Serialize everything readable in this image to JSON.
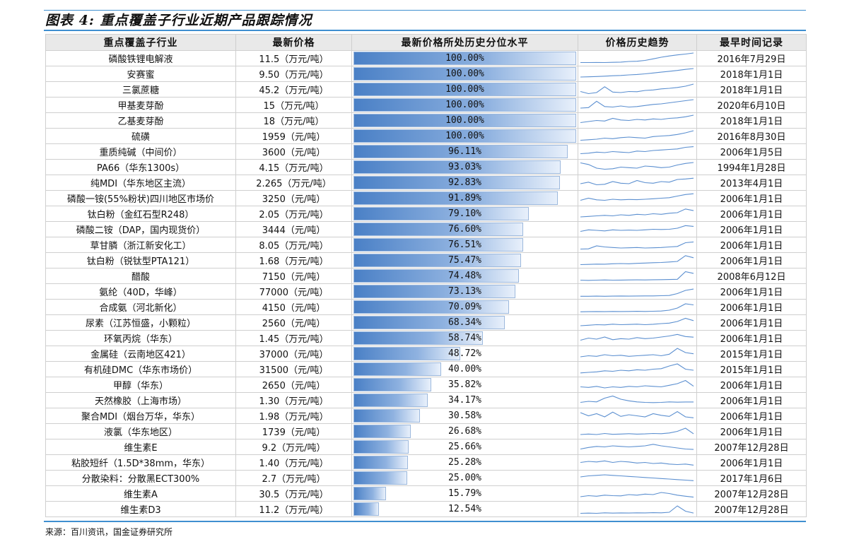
{
  "title": "图表 4: 重点覆盖子行业近期产品跟踪情况",
  "headers": [
    "重点覆盖子行业",
    "最新价格",
    "最新价格所处历史分位水平",
    "价格历史趋势",
    "最早时间记录"
  ],
  "colors": {
    "accent_line": "#3f8fd0",
    "bar": "#4a80c6",
    "sparkline": "#5b8fd0"
  },
  "rows": [
    {
      "name": "磷酸铁锂电解液",
      "price": "11.5（万元/吨）",
      "pct_label": "100.00%",
      "pct": 100.0,
      "since": "2016年7月29日",
      "trend": [
        0.1,
        0.1,
        0.11,
        0.1,
        0.12,
        0.14,
        0.2,
        0.22,
        0.3,
        0.45,
        0.6,
        0.72,
        0.82,
        0.9,
        1.0
      ]
    },
    {
      "name": "安赛蜜",
      "price": "9.50（万元/吨）",
      "pct_label": "100.00%",
      "pct": 100.0,
      "since": "2018年1月1日",
      "trend": [
        0.2,
        0.22,
        0.25,
        0.28,
        0.32,
        0.35,
        0.4,
        0.44,
        0.5,
        0.58,
        0.66,
        0.74,
        0.82,
        0.92,
        1.0
      ]
    },
    {
      "name": "三氯蔗糖",
      "price": "45.2（万元/吨）",
      "pct_label": "100.00%",
      "pct": 100.0,
      "since": "2018年1月1日",
      "trend": [
        0.3,
        0.1,
        0.2,
        0.75,
        0.25,
        0.2,
        0.3,
        0.28,
        0.4,
        0.45,
        0.55,
        0.6,
        0.68,
        0.8,
        1.0
      ]
    },
    {
      "name": "甲基麦芽酚",
      "price": "15（万元/吨）",
      "pct_label": "100.00%",
      "pct": 100.0,
      "since": "2020年6月10日",
      "trend": [
        0.2,
        0.25,
        0.85,
        0.35,
        0.3,
        0.4,
        0.3,
        0.35,
        0.45,
        0.55,
        0.6,
        0.7,
        0.8,
        0.9,
        1.0
      ]
    },
    {
      "name": "乙基麦芽酚",
      "price": "18（万元/吨）",
      "pct_label": "100.00%",
      "pct": 100.0,
      "since": "2018年1月1日",
      "trend": [
        0.3,
        0.4,
        0.5,
        0.45,
        0.7,
        0.55,
        0.5,
        0.6,
        0.55,
        0.65,
        0.6,
        0.7,
        0.75,
        0.85,
        1.0
      ]
    },
    {
      "name": "硫磺",
      "price": "1959（元/吨）",
      "pct_label": "100.00%",
      "pct": 100.0,
      "since": "2016年8月30日",
      "trend": [
        0.1,
        0.15,
        0.2,
        0.3,
        0.25,
        0.35,
        0.4,
        0.35,
        0.3,
        0.45,
        0.5,
        0.55,
        0.65,
        0.8,
        1.0
      ]
    },
    {
      "name": "重质纯碱（中间价）",
      "price": "3600（元/吨）",
      "pct_label": "96.11%",
      "pct": 96.11,
      "since": "2006年1月5日",
      "trend": [
        0.3,
        0.35,
        0.45,
        0.4,
        0.5,
        0.45,
        0.4,
        0.55,
        0.5,
        0.6,
        0.65,
        0.7,
        0.75,
        0.9,
        0.96
      ]
    },
    {
      "name": "PA66（华东1300s）",
      "price": "4.15（万元/吨）",
      "pct_label": "93.03%",
      "pct": 93.03,
      "since": "1994年1月28日",
      "trend": [
        0.9,
        0.75,
        0.4,
        0.3,
        0.35,
        0.5,
        0.45,
        0.4,
        0.6,
        0.55,
        0.45,
        0.5,
        0.7,
        0.85,
        0.93
      ]
    },
    {
      "name": "纯MDI（华东地区主流）",
      "price": "2.265（万元/吨）",
      "pct_label": "92.83%",
      "pct": 92.83,
      "since": "2013年4月1日",
      "trend": [
        0.4,
        0.55,
        0.3,
        0.35,
        0.6,
        0.45,
        0.4,
        0.7,
        0.5,
        0.45,
        0.6,
        0.55,
        0.8,
        0.85,
        0.92
      ]
    },
    {
      "name": "磷酸一铵(55%粉状)四川地区市场价",
      "price": "3250（元/吨）",
      "pct_label": "91.89%",
      "pct": 91.89,
      "since": "2006年1月1日",
      "trend": [
        0.3,
        0.5,
        0.35,
        0.3,
        0.4,
        0.35,
        0.38,
        0.36,
        0.4,
        0.45,
        0.5,
        0.55,
        0.7,
        0.85,
        0.92
      ]
    },
    {
      "name": "钛白粉（金红石型R248）",
      "price": "2.05（万元/吨）",
      "pct_label": "79.10%",
      "pct": 79.1,
      "since": "2006年1月1日",
      "trend": [
        0.2,
        0.25,
        0.3,
        0.35,
        0.3,
        0.4,
        0.35,
        0.45,
        0.4,
        0.5,
        0.45,
        0.55,
        0.6,
        0.95,
        0.79
      ]
    },
    {
      "name": "磷酸二铵（DAP，国内现货价）",
      "price": "3444（元/吨）",
      "pct_label": "76.60%",
      "pct": 76.6,
      "since": "2006年1月1日",
      "trend": [
        0.3,
        0.45,
        0.4,
        0.35,
        0.45,
        0.4,
        0.42,
        0.4,
        0.45,
        0.5,
        0.48,
        0.5,
        0.6,
        0.85,
        0.77
      ]
    },
    {
      "name": "草甘膦（浙江新安化工）",
      "price": "8.05（万元/吨）",
      "pct_label": "76.51%",
      "pct": 76.51,
      "since": "2006年1月1日",
      "trend": [
        0.1,
        0.12,
        0.4,
        0.3,
        0.25,
        0.2,
        0.22,
        0.25,
        0.2,
        0.22,
        0.25,
        0.3,
        0.35,
        0.7,
        0.77
      ]
    },
    {
      "name": "钛白粉（锐钛型PTA121）",
      "price": "1.68（万元/吨）",
      "pct_label": "75.47%",
      "pct": 75.47,
      "since": "2006年1月1日",
      "trend": [
        0.1,
        0.12,
        0.15,
        0.14,
        0.18,
        0.2,
        0.18,
        0.22,
        0.25,
        0.28,
        0.3,
        0.35,
        0.4,
        0.95,
        0.75
      ]
    },
    {
      "name": "醋酸",
      "price": "7150（元/吨）",
      "pct_label": "74.48%",
      "pct": 74.48,
      "since": "2008年6月12日",
      "trend": [
        0.1,
        0.08,
        0.1,
        0.12,
        0.1,
        0.11,
        0.12,
        0.13,
        0.12,
        0.14,
        0.15,
        0.16,
        0.18,
        0.9,
        0.74
      ]
    },
    {
      "name": "氨纶（40D，华峰）",
      "price": "77000（元/吨）",
      "pct_label": "73.13%",
      "pct": 73.13,
      "since": "2006年1月1日",
      "trend": [
        0.05,
        0.05,
        0.06,
        0.05,
        0.06,
        0.07,
        0.06,
        0.07,
        0.08,
        0.08,
        0.1,
        0.12,
        0.3,
        0.6,
        0.73
      ]
    },
    {
      "name": "合成氨（河北新化）",
      "price": "4150（元/吨）",
      "pct_label": "70.09%",
      "pct": 70.09,
      "since": "2006年1月1日",
      "trend": [
        0.05,
        0.06,
        0.07,
        0.06,
        0.08,
        0.07,
        0.08,
        0.09,
        0.08,
        0.1,
        0.12,
        0.2,
        0.4,
        0.8,
        0.7
      ]
    },
    {
      "name": "尿素（江苏恒盛，小颗粒）",
      "price": "2560（元/吨）",
      "pct_label": "68.34%",
      "pct": 68.34,
      "since": "2006年1月1日",
      "trend": [
        0.2,
        0.25,
        0.3,
        0.28,
        0.35,
        0.3,
        0.32,
        0.35,
        0.3,
        0.34,
        0.4,
        0.45,
        0.6,
        0.9,
        0.68
      ]
    },
    {
      "name": "环氧丙烷（华东）",
      "price": "1.45（万元/吨）",
      "pct_label": "58.74%",
      "pct": 58.74,
      "since": "2006年1月1日",
      "trend": [
        0.3,
        0.5,
        0.4,
        0.6,
        0.35,
        0.45,
        0.4,
        0.55,
        0.45,
        0.5,
        0.6,
        0.7,
        0.85,
        0.65,
        0.59
      ]
    },
    {
      "name": "金属硅（云南地区421）",
      "price": "37000（元/吨）",
      "pct_label": "48.72%",
      "pct": 48.72,
      "since": "2015年1月1日",
      "trend": [
        0.2,
        0.3,
        0.25,
        0.4,
        0.3,
        0.35,
        0.25,
        0.3,
        0.35,
        0.4,
        0.3,
        0.45,
        1.0,
        0.6,
        0.49
      ]
    },
    {
      "name": "有机硅DMC（华东市场价）",
      "price": "31500（元/吨）",
      "pct_label": "40.00%",
      "pct": 40.0,
      "since": "2015年1月1日",
      "trend": [
        0.15,
        0.2,
        0.25,
        0.35,
        0.3,
        0.4,
        0.35,
        0.45,
        0.4,
        0.5,
        0.55,
        0.8,
        1.0,
        0.5,
        0.4
      ]
    },
    {
      "name": "甲醇（华东）",
      "price": "2650（元/吨）",
      "pct_label": "35.82%",
      "pct": 35.82,
      "since": "2006年1月1日",
      "trend": [
        0.3,
        0.25,
        0.35,
        0.2,
        0.3,
        0.25,
        0.35,
        0.3,
        0.4,
        0.35,
        0.3,
        0.45,
        0.6,
        0.9,
        0.36
      ]
    },
    {
      "name": "天然橡胶（上海市场）",
      "price": "1.30（万元/吨）",
      "pct_label": "34.17%",
      "pct": 34.17,
      "since": "2006年1月1日",
      "trend": [
        0.3,
        0.4,
        0.35,
        0.7,
        0.9,
        0.6,
        0.45,
        0.35,
        0.3,
        0.28,
        0.3,
        0.35,
        0.32,
        0.34,
        0.34
      ]
    },
    {
      "name": "聚合MDI（烟台万华，华东）",
      "price": "1.98（万元/吨）",
      "pct_label": "30.58%",
      "pct": 30.58,
      "since": "2006年1月1日",
      "trend": [
        0.8,
        0.5,
        0.7,
        0.4,
        0.85,
        0.45,
        0.6,
        0.5,
        0.4,
        0.7,
        0.55,
        0.45,
        0.9,
        0.4,
        0.31
      ]
    },
    {
      "name": "液氯（华东地区）",
      "price": "1739（元/吨）",
      "pct_label": "26.68%",
      "pct": 26.68,
      "since": "2006年1月1日",
      "trend": [
        0.2,
        0.25,
        0.2,
        0.3,
        0.22,
        0.25,
        0.28,
        0.24,
        0.26,
        0.3,
        0.28,
        0.35,
        0.5,
        0.8,
        0.27
      ]
    },
    {
      "name": "维生素E",
      "price": "9.2（万元/吨）",
      "pct_label": "25.66%",
      "pct": 25.66,
      "since": "2007年12月28日",
      "trend": [
        0.3,
        0.45,
        0.55,
        0.5,
        0.6,
        0.55,
        0.5,
        0.55,
        0.6,
        0.75,
        0.6,
        0.5,
        0.4,
        0.3,
        0.26
      ]
    },
    {
      "name": "粘胶短纤（1.5D*38mm，华东）",
      "price": "1.40（万元/吨）",
      "pct_label": "25.28%",
      "pct": 25.28,
      "since": "2006年1月1日",
      "trend": [
        0.5,
        0.6,
        0.55,
        0.65,
        0.5,
        0.6,
        0.55,
        0.45,
        0.5,
        0.4,
        0.45,
        0.35,
        0.3,
        0.35,
        0.25
      ]
    },
    {
      "name": "分散染料：分散黑ECT300%",
      "price": "2.7（万元/吨）",
      "pct_label": "25.00%",
      "pct": 25.0,
      "since": "2017年1月6日",
      "trend": [
        0.6,
        0.7,
        0.75,
        0.8,
        0.75,
        0.7,
        0.65,
        0.6,
        0.55,
        0.5,
        0.45,
        0.4,
        0.35,
        0.3,
        0.25
      ]
    },
    {
      "name": "维生素A",
      "price": "30.5（万元/吨）",
      "pct_label": "15.79%",
      "pct": 15.79,
      "since": "2007年12月28日",
      "trend": [
        0.2,
        0.3,
        0.25,
        0.35,
        0.3,
        0.28,
        0.4,
        0.35,
        0.45,
        0.4,
        0.6,
        0.5,
        0.35,
        0.25,
        0.16
      ]
    },
    {
      "name": "维生素D3",
      "price": "11.2（万元/吨）",
      "pct_label": "12.54%",
      "pct": 12.54,
      "since": "2007年12月28日",
      "trend": [
        0.1,
        0.12,
        0.1,
        0.15,
        0.12,
        0.14,
        0.13,
        0.15,
        0.14,
        0.16,
        0.15,
        0.2,
        0.8,
        0.3,
        0.13
      ]
    }
  ],
  "source": "来源：百川资讯，国金证券研究所"
}
